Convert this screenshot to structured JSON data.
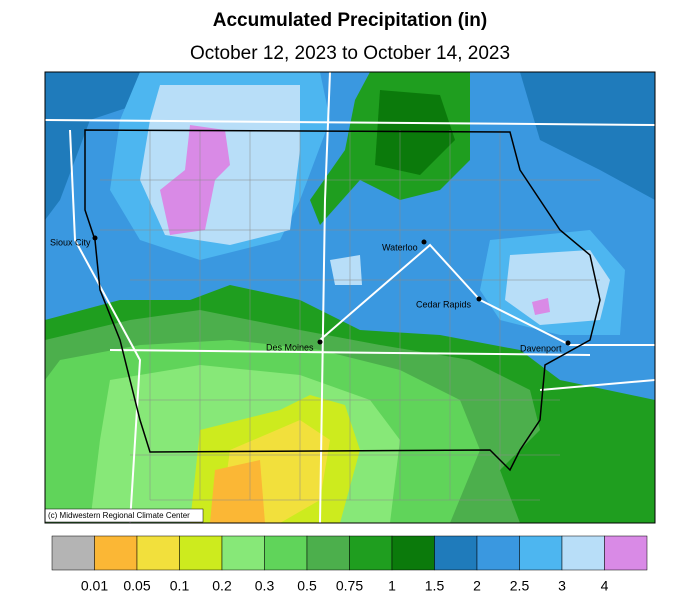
{
  "header": {
    "title": "Accumulated Precipitation (in)",
    "subtitle": "October 12, 2023 to October 14, 2023"
  },
  "map": {
    "cities": [
      {
        "label": "Sioux City"
      },
      {
        "label": "Waterloo"
      },
      {
        "label": "Cedar Rapids"
      },
      {
        "label": "Des Moines"
      },
      {
        "label": "Davenport"
      }
    ],
    "credit": "(c) Midwestern Regional Climate Center"
  },
  "legend": {
    "colors": [
      "#b4b4b4",
      "#fbb735",
      "#f2e03c",
      "#cdeb1e",
      "#87e878",
      "#60d45a",
      "#4caf4c",
      "#1f9e1f",
      "#0b7a0b",
      "#1f7bbb",
      "#3a98e0",
      "#4db6f0",
      "#b8def8",
      "#d98ae6"
    ],
    "labels": [
      0.01,
      0.05,
      0.1,
      0.2,
      0.3,
      0.5,
      0.75,
      1,
      1.5,
      2,
      2.5,
      3,
      4
    ]
  }
}
